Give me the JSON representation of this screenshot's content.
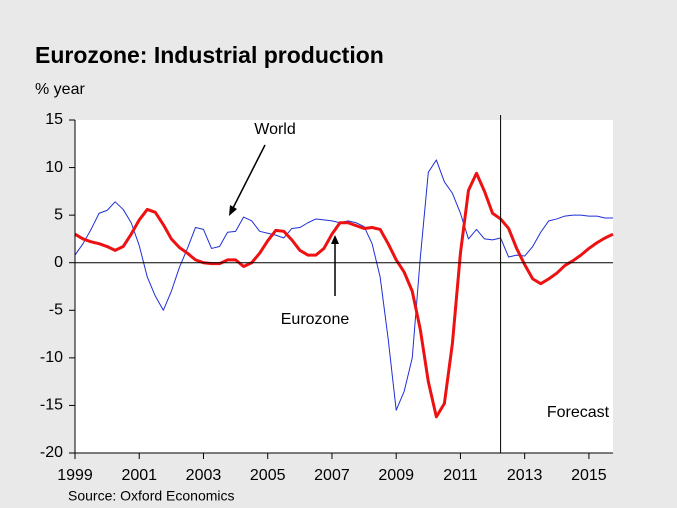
{
  "chart_data": {
    "type": "line",
    "title": "Eurozone: Industrial production",
    "y_label": "% year",
    "source": "Source: Oxford Economics",
    "x": [
      1999,
      1999.25,
      1999.5,
      1999.75,
      2000,
      2000.25,
      2000.5,
      2000.75,
      2001,
      2001.25,
      2001.5,
      2001.75,
      2002,
      2002.25,
      2002.5,
      2002.75,
      2003,
      2003.25,
      2003.5,
      2003.75,
      2004,
      2004.25,
      2004.5,
      2004.75,
      2005,
      2005.25,
      2005.5,
      2005.75,
      2006,
      2006.25,
      2006.5,
      2006.75,
      2007,
      2007.25,
      2007.5,
      2007.75,
      2008,
      2008.25,
      2008.5,
      2008.75,
      2009,
      2009.25,
      2009.5,
      2009.75,
      2010,
      2010.25,
      2010.5,
      2010.75,
      2011,
      2011.25,
      2011.5,
      2011.75,
      2012,
      2012.25,
      2012.5,
      2012.75,
      2013,
      2013.25,
      2013.5,
      2013.75,
      2014,
      2014.25,
      2014.5,
      2014.75,
      2015,
      2015.25,
      2015.5,
      2015.75
    ],
    "series": [
      {
        "name": "World",
        "color": "#1f2fd6",
        "width": 1,
        "values": [
          0.8,
          2,
          3.5,
          5.2,
          5.5,
          6.4,
          5.6,
          4.2,
          1.8,
          -1.5,
          -3.5,
          -5.0,
          -3.0,
          -0.5,
          1.5,
          3.7,
          3.5,
          1.5,
          1.7,
          3.2,
          3.3,
          4.8,
          4.4,
          3.3,
          3.1,
          2.9,
          2.6,
          3.6,
          3.7,
          4.2,
          4.6,
          4.5,
          4.4,
          4.2,
          4.4,
          4.2,
          3.8,
          2.0,
          -1.5,
          -8,
          -15.5,
          -13.5,
          -10,
          0.5,
          9.5,
          10.8,
          8.5,
          7.3,
          5.2,
          2.5,
          3.5,
          2.5,
          2.4,
          2.6,
          0.6,
          0.8,
          0.7,
          1.7,
          3.2,
          4.4,
          4.6,
          4.9,
          5.0,
          5.0,
          4.9,
          4.9,
          4.7,
          4.7
        ]
      },
      {
        "name": "Eurozone",
        "color": "#ee1111",
        "width": 3,
        "values": [
          3.0,
          2.5,
          2.2,
          2.0,
          1.7,
          1.3,
          1.7,
          3.0,
          4.5,
          5.6,
          5.3,
          4.0,
          2.5,
          1.6,
          1.0,
          0.3,
          0.0,
          -0.1,
          -0.1,
          0.3,
          0.3,
          -0.4,
          0.0,
          1.0,
          2.3,
          3.4,
          3.3,
          2.4,
          1.3,
          0.8,
          0.8,
          1.5,
          3.0,
          4.2,
          4.2,
          3.9,
          3.6,
          3.7,
          3.5,
          2.0,
          0.3,
          -1.0,
          -3.0,
          -7,
          -12.5,
          -16.2,
          -14.8,
          -8.5,
          1.0,
          7.6,
          9.4,
          7.5,
          5.2,
          4.6,
          3.6,
          1.5,
          -0.2,
          -1.7,
          -2.2,
          -1.7,
          -1.1,
          -0.3,
          0.2,
          0.8,
          1.5,
          2.1,
          2.6,
          3.0
        ]
      }
    ],
    "xlim": [
      1999,
      2015.75
    ],
    "xticks": [
      1999,
      2001,
      2003,
      2005,
      2007,
      2009,
      2011,
      2013,
      2015
    ],
    "ylim": [
      -20,
      15
    ],
    "yticks": [
      -20,
      -15,
      -10,
      -5,
      0,
      5,
      10,
      15
    ],
    "forecast_x": 2012.25,
    "forecast_label": "Forecast"
  }
}
